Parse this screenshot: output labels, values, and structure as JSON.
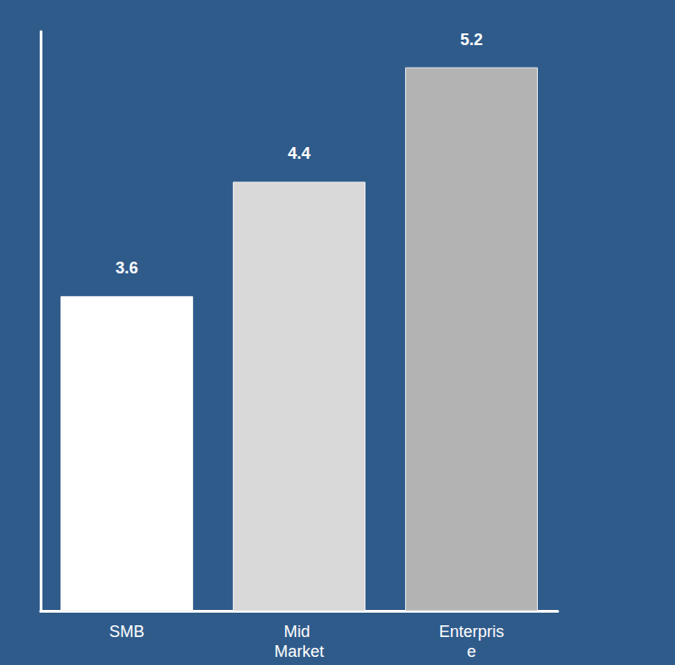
{
  "chart_data": {
    "type": "bar",
    "categories": [
      "SMB",
      "Mid Market",
      "Enterprise"
    ],
    "values": [
      3.6,
      4.4,
      5.2
    ],
    "colors": [
      "#ffffff",
      "#d9d9d9",
      "#b3b3b3"
    ],
    "ylim": [
      1.4,
      5.45
    ],
    "grid": false,
    "data_labels": true,
    "tick_labels": "x"
  }
}
